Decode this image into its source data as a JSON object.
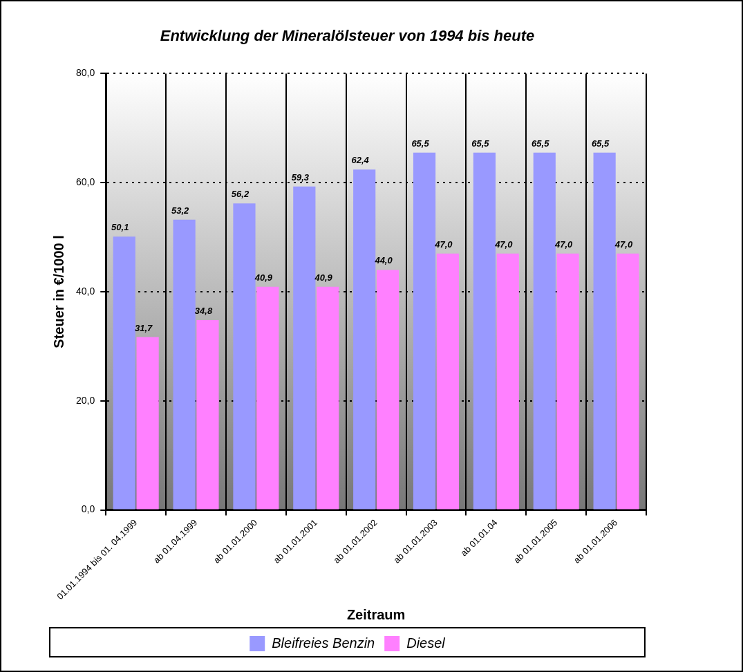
{
  "chart_data": {
    "type": "bar",
    "title": "Entwicklung der Mineralölsteuer von 1994 bis heute",
    "xlabel": "Zeitraum",
    "ylabel": "Steuer in €/1000 l",
    "categories": [
      "01.01.1994 bis 01. 04.1999",
      "ab 01.04.1999",
      "ab 01.01.2000",
      "ab 01.01.2001",
      "ab 01.01.2002",
      "ab 01.01.2003",
      "ab 01.01.04",
      "ab 01.01.2005",
      "ab 01.01.2006"
    ],
    "series": [
      {
        "name": "Bleifreies Benzin",
        "color": "#9999ff",
        "values": [
          50.1,
          53.2,
          56.2,
          59.3,
          62.4,
          65.5,
          65.5,
          65.5,
          65.5
        ],
        "value_labels": [
          "50,1",
          "53,2",
          "56,2",
          "59,3",
          "62,4",
          "65,5",
          "65,5",
          "65,5",
          "65,5"
        ]
      },
      {
        "name": "Diesel",
        "color": "#ff80ff",
        "values": [
          31.7,
          34.8,
          40.9,
          40.9,
          44.0,
          47.0,
          47.0,
          47.0,
          47.0
        ],
        "value_labels": [
          "31,7",
          "34,8",
          "40,9",
          "40,9",
          "44,0",
          "47,0",
          "47,0",
          "47,0",
          "47,0"
        ]
      }
    ],
    "ylim": [
      0,
      80
    ],
    "yticks": [
      {
        "value": 0,
        "label": "0,0"
      },
      {
        "value": 20,
        "label": "20,0"
      },
      {
        "value": 40,
        "label": "40,0"
      },
      {
        "value": 60,
        "label": "60,0"
      },
      {
        "value": 80,
        "label": "80,0"
      }
    ],
    "grid": true,
    "legend": "bottom"
  }
}
